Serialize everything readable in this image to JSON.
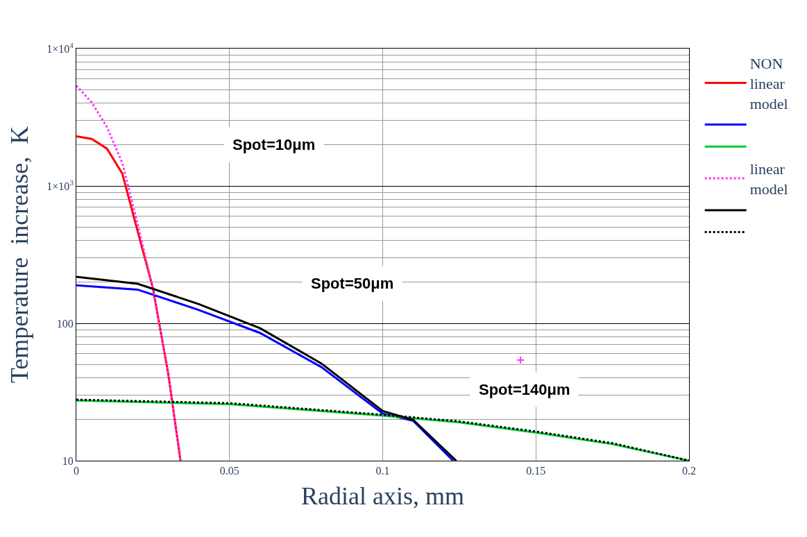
{
  "chart_data": {
    "type": "line",
    "xlabel": "Radial axis, mm",
    "ylabel": "Temperature  increase,  K",
    "log": "y",
    "grid": true,
    "legend": "right",
    "xlim": [
      0,
      0.2
    ],
    "xticks": [
      0,
      0.05,
      0.1,
      0.15,
      0.2
    ],
    "ylim": [
      10,
      10000
    ],
    "yticks": [
      {
        "value": 10,
        "label": "10"
      },
      {
        "value": 100,
        "label": "100"
      },
      {
        "value": 1000,
        "label": "1×10$^{3}$"
      },
      {
        "value": 10000,
        "label": "1×10$^{4}$"
      }
    ],
    "series": [
      {
        "name": "NON linear model",
        "color": "#ff0000",
        "line_style": "solid",
        "x": [
          0,
          0.005,
          0.01,
          0.015,
          0.02,
          0.025,
          0.03,
          0.034
        ],
        "values": [
          2300,
          2200,
          1870,
          1230,
          470,
          180,
          43,
          10
        ]
      },
      {
        "color": "#0000ff",
        "line_style": "solid",
        "x": [
          0,
          0.02,
          0.04,
          0.06,
          0.08,
          0.1,
          0.11,
          0.123
        ],
        "values": [
          189,
          176,
          125,
          85,
          48,
          22,
          19.5,
          10
        ]
      },
      {
        "color": "#00cc33",
        "line_style": "solid",
        "x": [
          0,
          0.05,
          0.1,
          0.125,
          0.15,
          0.175,
          0.2
        ],
        "values": [
          27.4,
          25.8,
          21.3,
          19,
          16,
          13.2,
          10
        ]
      },
      {
        "name": "linear model",
        "color": "#ff33ff",
        "line_style": "dotted",
        "x": [
          0,
          0.005,
          0.01,
          0.015,
          0.02,
          0.025,
          0.03,
          0.034
        ],
        "values": [
          5370,
          4060,
          2680,
          1470,
          530,
          180,
          43,
          10
        ]
      },
      {
        "color": "#000000",
        "line_style": "solid",
        "x": [
          0,
          0.02,
          0.04,
          0.06,
          0.08,
          0.1,
          0.11,
          0.124
        ],
        "values": [
          218,
          194,
          138,
          92,
          51,
          23,
          19.8,
          10
        ]
      },
      {
        "color": "#000000",
        "line_style": "dotted",
        "x": [
          0,
          0.05,
          0.1,
          0.125,
          0.15,
          0.175,
          0.2
        ],
        "values": [
          27.8,
          26.2,
          21.6,
          19.3,
          16.3,
          13.4,
          10
        ]
      },
      {
        "type": "scatter",
        "marker": "cross",
        "color": "#ff33ff",
        "x": [
          0.145
        ],
        "values": [
          54
        ]
      }
    ],
    "annotations": [
      "Spot=10μm",
      "Spot=50μm",
      "Spot=140μm"
    ]
  }
}
